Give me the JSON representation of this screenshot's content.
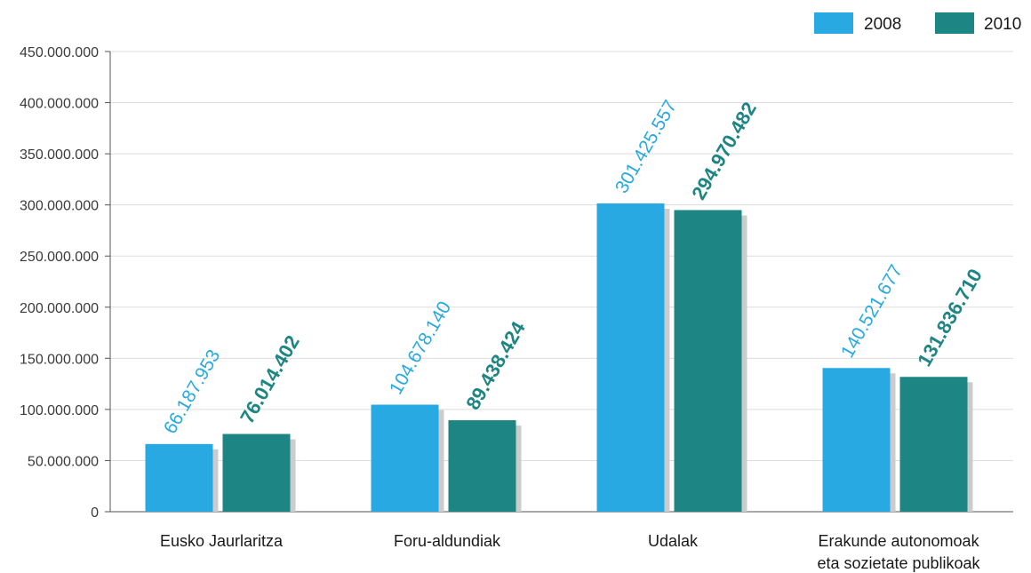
{
  "chart_data": {
    "type": "bar",
    "categories": [
      [
        "Eusko Jaurlaritza"
      ],
      [
        "Foru-aldundiak"
      ],
      [
        "Udalak"
      ],
      [
        "Erakunde autonomoak",
        "eta sozietate publikoak"
      ]
    ],
    "series": [
      {
        "name": "2008",
        "color": "#29a9e1",
        "values": [
          66187953,
          104678140,
          301425557,
          140521677
        ],
        "labels": [
          "66.187.953",
          "104.678.140",
          "301.425.557",
          "140.521.677"
        ]
      },
      {
        "name": "2010",
        "color": "#1d8583",
        "values": [
          76014402,
          89438424,
          294970482,
          131836710
        ],
        "labels": [
          "76.014.402",
          "89.438.424",
          "294.970.482",
          "131.836.710"
        ]
      }
    ],
    "ylim": [
      0,
      450000000
    ],
    "yticks": [
      0,
      50000000,
      100000000,
      150000000,
      200000000,
      250000000,
      300000000,
      350000000,
      400000000,
      450000000
    ],
    "ytick_labels": [
      "0",
      "50.000.000",
      "100.000.000",
      "150.000.000",
      "200.000.000",
      "250.000.000",
      "300.000.000",
      "350.000.000",
      "400.000.000",
      "450.000.000"
    ],
    "grid": true,
    "legend": "top-right",
    "shadow_color": "#cccccc",
    "grid_color": "#dddddd",
    "axis_color": "#555555"
  }
}
